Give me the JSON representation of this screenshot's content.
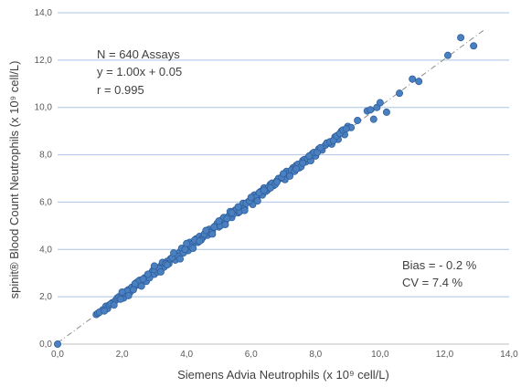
{
  "chart_data": {
    "type": "scatter",
    "xlabel": "Siemens Advia Neutrophils (x 10⁹ cell/L)",
    "ylabel": "spinit® Blood Count Neutrophils (x 10⁹ cell/L)",
    "xlim": [
      0,
      14
    ],
    "ylim": [
      0,
      14
    ],
    "x_ticks": [
      "0,0",
      "2,0",
      "4,0",
      "6,0",
      "8,0",
      "10,0",
      "12,0",
      "14,0"
    ],
    "y_ticks": [
      "0,0",
      "2,0",
      "4,0",
      "6,0",
      "8,0",
      "10,0",
      "12,0",
      "14,0"
    ],
    "grid": "horizontal",
    "point_color": "#4a7fc0",
    "point_edge_color": "#2e5f9c",
    "trendline": {
      "slope": 1.0,
      "intercept": 0.05,
      "style": "dash-dot",
      "color": "#8c8c8c"
    },
    "annotations": {
      "stats": [
        "N = 640 Assays",
        "y = 1.00x + 0.05",
        "r = 0.995"
      ],
      "bias": [
        "Bias = - 0.2 %",
        "CV  = 7.4 %"
      ]
    },
    "points": [
      [
        0.0,
        0.0
      ],
      [
        1.2,
        1.25
      ],
      [
        1.25,
        1.3
      ],
      [
        1.4,
        1.45
      ],
      [
        1.5,
        1.6
      ],
      [
        1.55,
        1.5
      ],
      [
        1.6,
        1.65
      ],
      [
        1.7,
        1.75
      ],
      [
        1.8,
        1.85
      ],
      [
        1.85,
        1.95
      ],
      [
        1.9,
        2.0
      ],
      [
        2.0,
        2.1
      ],
      [
        2.05,
        1.95
      ],
      [
        2.1,
        2.15
      ],
      [
        2.2,
        2.3
      ],
      [
        2.25,
        2.2
      ],
      [
        2.3,
        2.4
      ],
      [
        2.4,
        2.45
      ],
      [
        2.45,
        2.6
      ],
      [
        2.5,
        2.5
      ],
      [
        2.55,
        2.7
      ],
      [
        2.6,
        2.6
      ],
      [
        2.7,
        2.8
      ],
      [
        2.75,
        2.65
      ],
      [
        2.8,
        2.9
      ],
      [
        2.9,
        3.0
      ],
      [
        2.95,
        3.1
      ],
      [
        3.0,
        2.95
      ],
      [
        3.05,
        3.2
      ],
      [
        3.1,
        3.05
      ],
      [
        3.2,
        3.3
      ],
      [
        3.25,
        3.45
      ],
      [
        3.3,
        3.25
      ],
      [
        3.4,
        3.5
      ],
      [
        3.45,
        3.4
      ],
      [
        3.5,
        3.6
      ],
      [
        3.6,
        3.7
      ],
      [
        3.65,
        3.55
      ],
      [
        3.7,
        3.8
      ],
      [
        3.8,
        3.9
      ],
      [
        3.85,
        4.05
      ],
      [
        3.9,
        3.85
      ],
      [
        4.0,
        4.1
      ],
      [
        4.05,
        3.95
      ],
      [
        4.1,
        4.3
      ],
      [
        4.2,
        4.25
      ],
      [
        4.3,
        4.45
      ],
      [
        4.35,
        4.3
      ],
      [
        4.4,
        4.55
      ],
      [
        4.5,
        4.5
      ],
      [
        4.6,
        4.7
      ],
      [
        4.65,
        4.6
      ],
      [
        4.7,
        4.85
      ],
      [
        4.8,
        4.8
      ],
      [
        4.9,
        5.0
      ],
      [
        4.95,
        5.1
      ],
      [
        5.0,
        4.95
      ],
      [
        5.1,
        5.25
      ],
      [
        5.2,
        5.2
      ],
      [
        5.3,
        5.4
      ],
      [
        5.35,
        5.6
      ],
      [
        5.4,
        5.35
      ],
      [
        5.5,
        5.65
      ],
      [
        5.6,
        5.55
      ],
      [
        5.7,
        5.8
      ],
      [
        5.75,
        5.95
      ],
      [
        5.8,
        5.75
      ],
      [
        5.9,
        6.0
      ],
      [
        6.0,
        6.1
      ],
      [
        6.05,
        5.9
      ],
      [
        6.1,
        6.3
      ],
      [
        6.2,
        6.25
      ],
      [
        6.3,
        6.45
      ],
      [
        6.35,
        6.3
      ],
      [
        6.4,
        6.6
      ],
      [
        6.5,
        6.5
      ],
      [
        6.6,
        6.75
      ],
      [
        6.7,
        6.7
      ],
      [
        6.8,
        6.9
      ],
      [
        6.9,
        7.0
      ],
      [
        7.0,
        7.1
      ],
      [
        7.05,
        6.95
      ],
      [
        7.1,
        7.3
      ],
      [
        7.2,
        7.2
      ],
      [
        7.3,
        7.45
      ],
      [
        7.4,
        7.55
      ],
      [
        7.5,
        7.45
      ],
      [
        7.6,
        7.75
      ],
      [
        7.7,
        7.7
      ],
      [
        7.8,
        7.9
      ],
      [
        7.9,
        8.05
      ],
      [
        8.0,
        7.95
      ],
      [
        8.1,
        8.25
      ],
      [
        8.2,
        8.2
      ],
      [
        8.3,
        8.4
      ],
      [
        8.4,
        8.5
      ],
      [
        8.5,
        8.45
      ],
      [
        8.6,
        8.75
      ],
      [
        8.7,
        8.65
      ],
      [
        8.8,
        9.0
      ],
      [
        8.9,
        8.85
      ],
      [
        9.0,
        9.2
      ],
      [
        9.1,
        9.15
      ],
      [
        9.3,
        9.45
      ],
      [
        9.6,
        9.85
      ],
      [
        9.7,
        9.9
      ],
      [
        9.8,
        9.5
      ],
      [
        9.9,
        10.0
      ],
      [
        10.0,
        10.2
      ],
      [
        10.2,
        9.8
      ],
      [
        10.6,
        10.6
      ],
      [
        11.0,
        11.2
      ],
      [
        11.2,
        11.1
      ],
      [
        12.1,
        12.2
      ],
      [
        12.5,
        12.95
      ],
      [
        12.9,
        12.6
      ],
      [
        1.3,
        1.35
      ],
      [
        1.45,
        1.4
      ],
      [
        1.65,
        1.7
      ],
      [
        1.75,
        1.65
      ],
      [
        1.95,
        1.9
      ],
      [
        2.15,
        2.25
      ],
      [
        2.35,
        2.3
      ],
      [
        2.5,
        2.65
      ],
      [
        2.65,
        2.75
      ],
      [
        2.85,
        2.8
      ],
      [
        3.0,
        3.15
      ],
      [
        3.15,
        3.2
      ],
      [
        3.35,
        3.4
      ],
      [
        3.55,
        3.65
      ],
      [
        3.75,
        3.7
      ],
      [
        3.95,
        4.0
      ],
      [
        4.15,
        4.1
      ],
      [
        4.25,
        4.4
      ],
      [
        4.45,
        4.4
      ],
      [
        4.55,
        4.65
      ],
      [
        4.75,
        4.7
      ],
      [
        4.85,
        4.95
      ],
      [
        5.05,
        5.0
      ],
      [
        5.15,
        5.35
      ],
      [
        5.25,
        5.3
      ],
      [
        5.45,
        5.5
      ],
      [
        5.55,
        5.7
      ],
      [
        5.65,
        5.6
      ],
      [
        5.85,
        5.95
      ],
      [
        5.95,
        6.05
      ],
      [
        6.15,
        6.2
      ],
      [
        6.25,
        6.4
      ],
      [
        6.45,
        6.45
      ],
      [
        6.55,
        6.65
      ],
      [
        6.65,
        6.8
      ],
      [
        6.75,
        6.75
      ],
      [
        6.85,
        7.0
      ],
      [
        6.95,
        7.05
      ],
      [
        7.15,
        7.2
      ],
      [
        7.25,
        7.35
      ],
      [
        7.35,
        7.3
      ],
      [
        7.45,
        7.6
      ],
      [
        7.55,
        7.5
      ],
      [
        7.65,
        7.8
      ],
      [
        7.75,
        7.85
      ],
      [
        7.85,
        7.75
      ],
      [
        7.95,
        8.1
      ],
      [
        8.05,
        8.1
      ],
      [
        8.15,
        8.3
      ],
      [
        8.35,
        8.5
      ],
      [
        8.45,
        8.55
      ],
      [
        8.55,
        8.6
      ],
      [
        8.65,
        8.8
      ],
      [
        8.75,
        8.9
      ],
      [
        8.85,
        9.05
      ],
      [
        8.95,
        9.1
      ],
      [
        2.0,
        2.2
      ],
      [
        2.2,
        2.05
      ],
      [
        2.4,
        2.55
      ],
      [
        2.6,
        2.45
      ],
      [
        2.8,
        2.95
      ],
      [
        3.0,
        3.3
      ],
      [
        3.2,
        3.05
      ],
      [
        3.4,
        3.35
      ],
      [
        3.6,
        3.85
      ],
      [
        3.8,
        3.6
      ],
      [
        4.0,
        4.25
      ],
      [
        4.2,
        4.05
      ],
      [
        4.4,
        4.35
      ],
      [
        4.6,
        4.8
      ],
      [
        4.8,
        4.65
      ],
      [
        5.0,
        5.2
      ],
      [
        5.2,
        5.05
      ],
      [
        5.4,
        5.55
      ],
      [
        5.6,
        5.8
      ],
      [
        5.8,
        5.65
      ],
      [
        6.0,
        6.2
      ],
      [
        6.2,
        6.05
      ],
      [
        6.4,
        6.5
      ],
      [
        6.6,
        6.6
      ],
      [
        6.8,
        6.85
      ],
      [
        7.0,
        7.2
      ],
      [
        7.2,
        7.1
      ],
      [
        7.4,
        7.4
      ],
      [
        7.6,
        7.65
      ],
      [
        7.8,
        7.95
      ]
    ]
  }
}
